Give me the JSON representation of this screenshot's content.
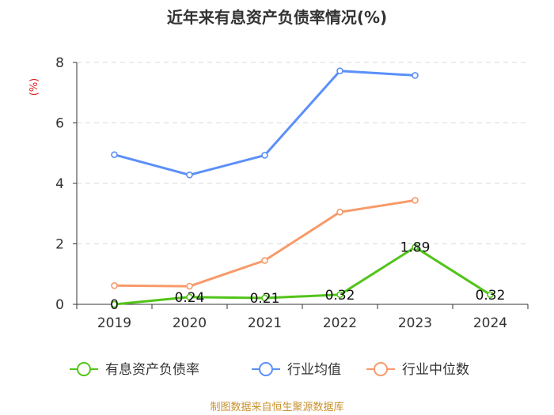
{
  "chart_data": {
    "type": "line",
    "title": "近年来有息资产负债率情况(%)",
    "unit_label": "(%)",
    "categories": [
      "2019",
      "2020",
      "2021",
      "2022",
      "2023",
      "2024"
    ],
    "ylim": [
      0,
      8
    ],
    "yticks": [
      0,
      2,
      4,
      6,
      8
    ],
    "grid": true,
    "legend_position": "bottom",
    "series": [
      {
        "name": "有息资产负债率",
        "color": "#52c41a",
        "values": [
          0,
          0.24,
          0.21,
          0.32,
          1.89,
          0.32
        ],
        "labels": [
          "0",
          "0.24",
          "0.21",
          "0.32",
          "1.89",
          "0.32"
        ]
      },
      {
        "name": "行业均值",
        "color": "#5b8ff9",
        "values": [
          4.95,
          4.28,
          4.93,
          7.72,
          7.57,
          null
        ]
      },
      {
        "name": "行业中位数",
        "color": "#f79a6a",
        "values": [
          0.62,
          0.6,
          1.45,
          3.05,
          3.44,
          null
        ]
      }
    ],
    "source": "制图数据来自恒生聚源数据库"
  }
}
